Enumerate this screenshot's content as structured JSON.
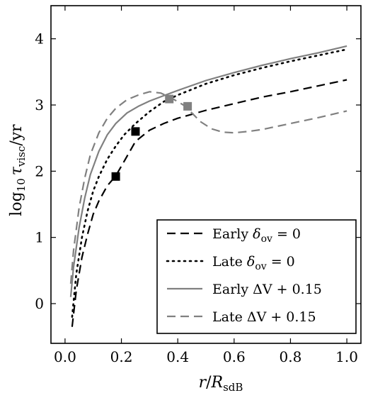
{
  "chart_data": {
    "type": "line",
    "xlabel": "r/R_sdB",
    "ylabel": "log10 τ_visc/yr",
    "xlim": [
      -0.05,
      1.05
    ],
    "ylim": [
      -0.6,
      4.5
    ],
    "x_ticks": [
      "0.0",
      "0.2",
      "0.4",
      "0.6",
      "0.8",
      "1.0"
    ],
    "y_ticks": [
      "0",
      "1",
      "2",
      "3",
      "4"
    ],
    "legend_position": "lower-right",
    "series": [
      {
        "name": "Early δov = 0",
        "style": "dashed",
        "color": "#000000",
        "x": [
          0.025,
          0.04,
          0.06,
          0.08,
          0.1,
          0.12,
          0.15,
          0.18,
          0.21,
          0.25,
          0.3,
          0.35,
          0.4,
          0.5,
          0.6,
          0.7,
          0.8,
          0.9,
          1.0
        ],
        "y": [
          -0.35,
          0.2,
          0.7,
          1.05,
          1.35,
          1.55,
          1.78,
          1.93,
          2.15,
          2.45,
          2.62,
          2.72,
          2.8,
          2.92,
          3.02,
          3.12,
          3.2,
          3.29,
          3.38
        ]
      },
      {
        "name": "Late δov = 0",
        "style": "dotted",
        "color": "#000000",
        "x": [
          0.025,
          0.04,
          0.06,
          0.08,
          0.1,
          0.12,
          0.15,
          0.18,
          0.21,
          0.25,
          0.3,
          0.35,
          0.4,
          0.5,
          0.6,
          0.7,
          0.8,
          0.9,
          1.0
        ],
        "y": [
          -0.2,
          0.45,
          1.0,
          1.4,
          1.7,
          1.92,
          2.18,
          2.38,
          2.55,
          2.72,
          2.9,
          3.05,
          3.15,
          3.32,
          3.45,
          3.56,
          3.66,
          3.75,
          3.84
        ]
      },
      {
        "name": "Early ΔV + 0.15",
        "style": "solid",
        "color": "#808080",
        "x": [
          0.02,
          0.03,
          0.05,
          0.07,
          0.09,
          0.12,
          0.15,
          0.18,
          0.22,
          0.26,
          0.3,
          0.35,
          0.4,
          0.5,
          0.6,
          0.7,
          0.8,
          0.9,
          1.0
        ],
        "y": [
          0.1,
          0.55,
          1.15,
          1.6,
          1.95,
          2.3,
          2.55,
          2.72,
          2.88,
          2.98,
          3.06,
          3.14,
          3.22,
          3.37,
          3.49,
          3.6,
          3.7,
          3.79,
          3.89
        ]
      },
      {
        "name": "Late ΔV + 0.15",
        "style": "dashed",
        "color": "#808080",
        "x": [
          0.02,
          0.03,
          0.05,
          0.07,
          0.09,
          0.12,
          0.15,
          0.18,
          0.22,
          0.26,
          0.3,
          0.34,
          0.38,
          0.42,
          0.45,
          0.48,
          0.52,
          0.56,
          0.6,
          0.65,
          0.7,
          0.8,
          0.9,
          1.0
        ],
        "y": [
          0.3,
          0.8,
          1.45,
          1.9,
          2.25,
          2.58,
          2.8,
          2.95,
          3.08,
          3.15,
          3.2,
          3.18,
          3.1,
          3.0,
          2.88,
          2.75,
          2.64,
          2.59,
          2.58,
          2.6,
          2.63,
          2.72,
          2.81,
          2.91
        ]
      }
    ],
    "markers": [
      {
        "x": 0.18,
        "y": 1.92,
        "color": "#000000"
      },
      {
        "x": 0.25,
        "y": 2.6,
        "color": "#000000"
      },
      {
        "x": 0.37,
        "y": 3.09,
        "color": "#808080"
      },
      {
        "x": 0.435,
        "y": 2.98,
        "color": "#808080"
      }
    ]
  }
}
